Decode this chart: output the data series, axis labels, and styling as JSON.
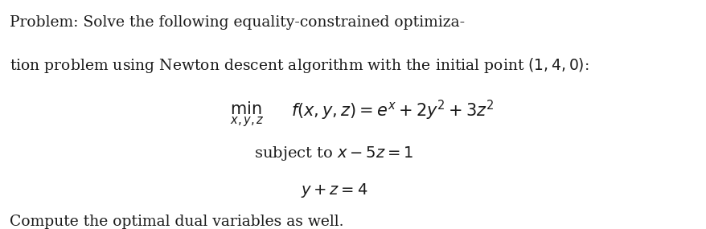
{
  "background_color": "#ffffff",
  "fig_width": 8.79,
  "fig_height": 2.85,
  "dpi": 100,
  "line1": "Problem: Solve the following equality-constrained optimiza-",
  "line2": "tion problem using Newton descent algorithm with the initial point $(1, 4, 0)$:",
  "min_label": "min",
  "subscript": "$x,y,z$",
  "obj_func": "$f(x, y, z) = e^{x} + 2y^2 + 3z^2$",
  "subject_to": "subject to $x - 5z = 1$",
  "constraint2": "$y + z = 4$",
  "footer": "Compute the optimal dual variables as well.",
  "text_color": "#1a1a1a",
  "font_size_body": 13.5,
  "font_size_math": 14,
  "font_size_min": 12,
  "font_size_subscript": 10
}
